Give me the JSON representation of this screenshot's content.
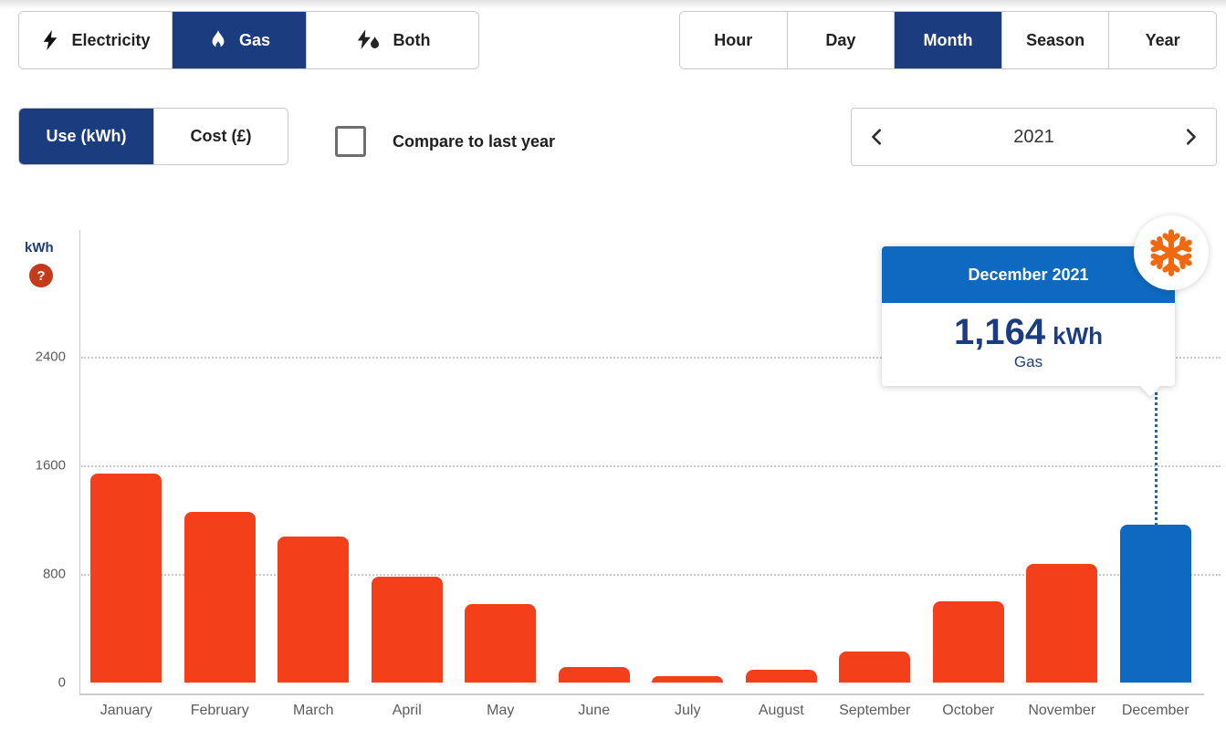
{
  "fuel_toggle": {
    "items": [
      {
        "label": "Electricity",
        "icon": "bolt-icon",
        "selected": false
      },
      {
        "label": "Gas",
        "icon": "flame-icon",
        "selected": true
      },
      {
        "label": "Both",
        "icon": "bolt-flame-icon",
        "selected": false
      }
    ]
  },
  "period_toggle": {
    "items": [
      {
        "label": "Hour",
        "selected": false
      },
      {
        "label": "Day",
        "selected": false
      },
      {
        "label": "Month",
        "selected": true
      },
      {
        "label": "Season",
        "selected": false
      },
      {
        "label": "Year",
        "selected": false
      }
    ]
  },
  "unit_toggle": {
    "items": [
      {
        "label": "Use (kWh)",
        "selected": true
      },
      {
        "label": "Cost (£)",
        "selected": false
      }
    ]
  },
  "compare": {
    "label": "Compare to last year",
    "checked": false
  },
  "year_nav": {
    "year": "2021"
  },
  "axis": {
    "unit_label": "kWh",
    "help_label": "?"
  },
  "tooltip": {
    "title": "December 2021",
    "value": "1,164",
    "unit": "kWh",
    "fuel": "Gas",
    "badge_icon": "snowflake-icon"
  },
  "colors": {
    "navy": "#1b3c7e",
    "blue": "#0e6ac0",
    "bar": "#f4401a",
    "snowflake_orange": "#f0680f",
    "help_red": "#c63a1c"
  },
  "chart_data": {
    "type": "bar",
    "categories": [
      "January",
      "February",
      "March",
      "April",
      "May",
      "June",
      "July",
      "August",
      "September",
      "October",
      "November",
      "December"
    ],
    "series": [
      {
        "name": "Gas use (kWh)",
        "values": [
          1540,
          1260,
          1075,
          780,
          575,
          115,
          45,
          95,
          230,
          600,
          875,
          1164
        ]
      }
    ],
    "selected_index": 11,
    "selected_point": {
      "category": "December 2021",
      "value": 1164,
      "unit": "kWh",
      "fuel": "Gas"
    },
    "xlabel": "",
    "ylabel": "kWh",
    "yticks": [
      0,
      800,
      1600,
      2400
    ],
    "ylim": [
      0,
      3300
    ],
    "grid": "dotted-horizontal",
    "legend": "none",
    "bar_color": "#f4401a",
    "selected_bar_color": "#0e6ac0"
  }
}
